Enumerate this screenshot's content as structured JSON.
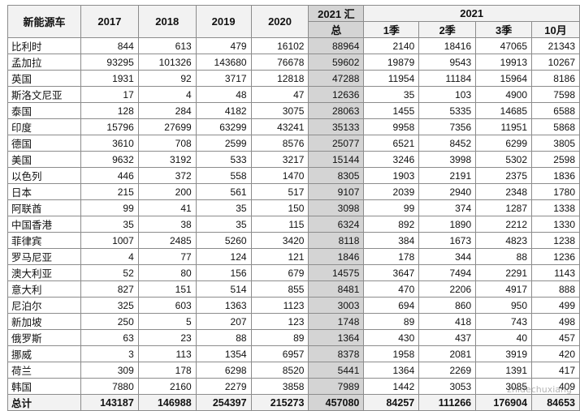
{
  "table": {
    "headers": {
      "name": "新能源车",
      "years": [
        "2017",
        "2018",
        "2019",
        "2020"
      ],
      "total_2021_line1": "2021 汇",
      "total_2021_line2": "总",
      "group_2021": "2021",
      "sub_2021": [
        "1季",
        "2季",
        "3季",
        "10月"
      ]
    },
    "rows": [
      {
        "name": "比利时",
        "values": [
          "844",
          "613",
          "479",
          "16102",
          "88964",
          "2140",
          "18416",
          "47065",
          "21343"
        ]
      },
      {
        "name": "孟加拉",
        "values": [
          "93295",
          "101326",
          "143680",
          "76678",
          "59602",
          "19879",
          "9543",
          "19913",
          "10267"
        ]
      },
      {
        "name": "英国",
        "values": [
          "1931",
          "92",
          "3717",
          "12818",
          "47288",
          "11954",
          "11184",
          "15964",
          "8186"
        ]
      },
      {
        "name": "斯洛文尼亚",
        "values": [
          "17",
          "4",
          "48",
          "47",
          "12636",
          "35",
          "103",
          "4900",
          "7598"
        ]
      },
      {
        "name": "泰国",
        "values": [
          "128",
          "284",
          "4182",
          "3075",
          "28063",
          "1455",
          "5335",
          "14685",
          "6588"
        ]
      },
      {
        "name": "印度",
        "values": [
          "15796",
          "27699",
          "63299",
          "43241",
          "35133",
          "9958",
          "7356",
          "11951",
          "5868"
        ]
      },
      {
        "name": "德国",
        "values": [
          "3610",
          "708",
          "2599",
          "8576",
          "25077",
          "6521",
          "8452",
          "6299",
          "3805"
        ]
      },
      {
        "name": "美国",
        "values": [
          "9632",
          "3192",
          "533",
          "3217",
          "15144",
          "3246",
          "3998",
          "5302",
          "2598"
        ]
      },
      {
        "name": "以色列",
        "values": [
          "446",
          "372",
          "558",
          "1470",
          "8305",
          "1903",
          "2191",
          "2375",
          "1836"
        ]
      },
      {
        "name": "日本",
        "values": [
          "215",
          "200",
          "561",
          "517",
          "9107",
          "2039",
          "2940",
          "2348",
          "1780"
        ]
      },
      {
        "name": "阿联酋",
        "values": [
          "99",
          "41",
          "35",
          "150",
          "3098",
          "99",
          "374",
          "1287",
          "1338"
        ]
      },
      {
        "name": "中国香港",
        "values": [
          "35",
          "38",
          "35",
          "115",
          "6324",
          "892",
          "1890",
          "2212",
          "1330"
        ]
      },
      {
        "name": "菲律宾",
        "values": [
          "1007",
          "2485",
          "5260",
          "3420",
          "8118",
          "384",
          "1673",
          "4823",
          "1238"
        ]
      },
      {
        "name": "罗马尼亚",
        "values": [
          "4",
          "77",
          "124",
          "121",
          "1846",
          "178",
          "344",
          "88",
          "1236"
        ]
      },
      {
        "name": "澳大利亚",
        "values": [
          "52",
          "80",
          "156",
          "679",
          "14575",
          "3647",
          "7494",
          "2291",
          "1143"
        ]
      },
      {
        "name": "意大利",
        "values": [
          "827",
          "151",
          "514",
          "855",
          "8481",
          "470",
          "2206",
          "4917",
          "888"
        ]
      },
      {
        "name": "尼泊尔",
        "values": [
          "325",
          "603",
          "1363",
          "1123",
          "3003",
          "694",
          "860",
          "950",
          "499"
        ]
      },
      {
        "name": "新加坡",
        "values": [
          "250",
          "5",
          "207",
          "123",
          "1748",
          "89",
          "418",
          "743",
          "498"
        ]
      },
      {
        "name": "俄罗斯",
        "values": [
          "63",
          "23",
          "88",
          "89",
          "1364",
          "430",
          "437",
          "40",
          "457"
        ]
      },
      {
        "name": "挪威",
        "values": [
          "3",
          "113",
          "1354",
          "6957",
          "8378",
          "1958",
          "2081",
          "3919",
          "420"
        ]
      },
      {
        "name": "荷兰",
        "values": [
          "309",
          "178",
          "6298",
          "8520",
          "5441",
          "1364",
          "2269",
          "1391",
          "417"
        ]
      },
      {
        "name": "韩国",
        "values": [
          "7880",
          "2160",
          "2279",
          "3858",
          "7989",
          "1442",
          "3053",
          "3085",
          "409"
        ]
      }
    ],
    "total": {
      "name": "总计",
      "values": [
        "143187",
        "146988",
        "254397",
        "215273",
        "457080",
        "84257",
        "111266",
        "176904",
        "84653"
      ]
    }
  },
  "watermark": "zhidechuxiang"
}
